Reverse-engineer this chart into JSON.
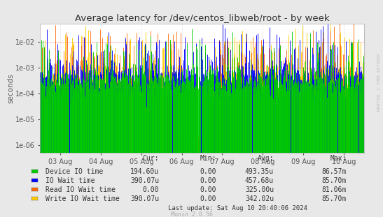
{
  "title": "Average latency for /dev/centos_libweb/root - by week",
  "ylabel": "seconds",
  "watermark": "RRDTOOL / TOBI OETIKER",
  "munin_version": "Munin 2.0.56",
  "last_update": "Last update: Sat Aug 10 20:40:06 2024",
  "bg_color": "#e8e8e8",
  "plot_bg_color": "#ffffff",
  "x_tick_labels": [
    "03 Aug",
    "04 Aug",
    "05 Aug",
    "06 Aug",
    "07 Aug",
    "08 Aug",
    "09 Aug",
    "10 Aug"
  ],
  "legend_entries": [
    {
      "label": "Device IO time",
      "color": "#00cc00"
    },
    {
      "label": "IO Wait time",
      "color": "#0000ff"
    },
    {
      "label": "Read IO Wait time",
      "color": "#ff6600"
    },
    {
      "label": "Write IO Wait time",
      "color": "#ffcc00"
    }
  ],
  "stats": [
    {
      "name": "Device IO time",
      "cur": "194.60u",
      "min": "0.00",
      "avg": "493.35u",
      "max": "86.57m"
    },
    {
      "name": "IO Wait time",
      "cur": "390.07u",
      "min": "0.00",
      "avg": "457.68u",
      "max": "85.70m"
    },
    {
      "name": "Read IO Wait time",
      "cur": "0.00",
      "min": "0.00",
      "avg": "325.00u",
      "max": "81.06m"
    },
    {
      "name": "Write IO Wait time",
      "cur": "390.07u",
      "min": "0.00",
      "avg": "342.02u",
      "max": "85.70m"
    }
  ],
  "n_points": 800,
  "seed": 42
}
